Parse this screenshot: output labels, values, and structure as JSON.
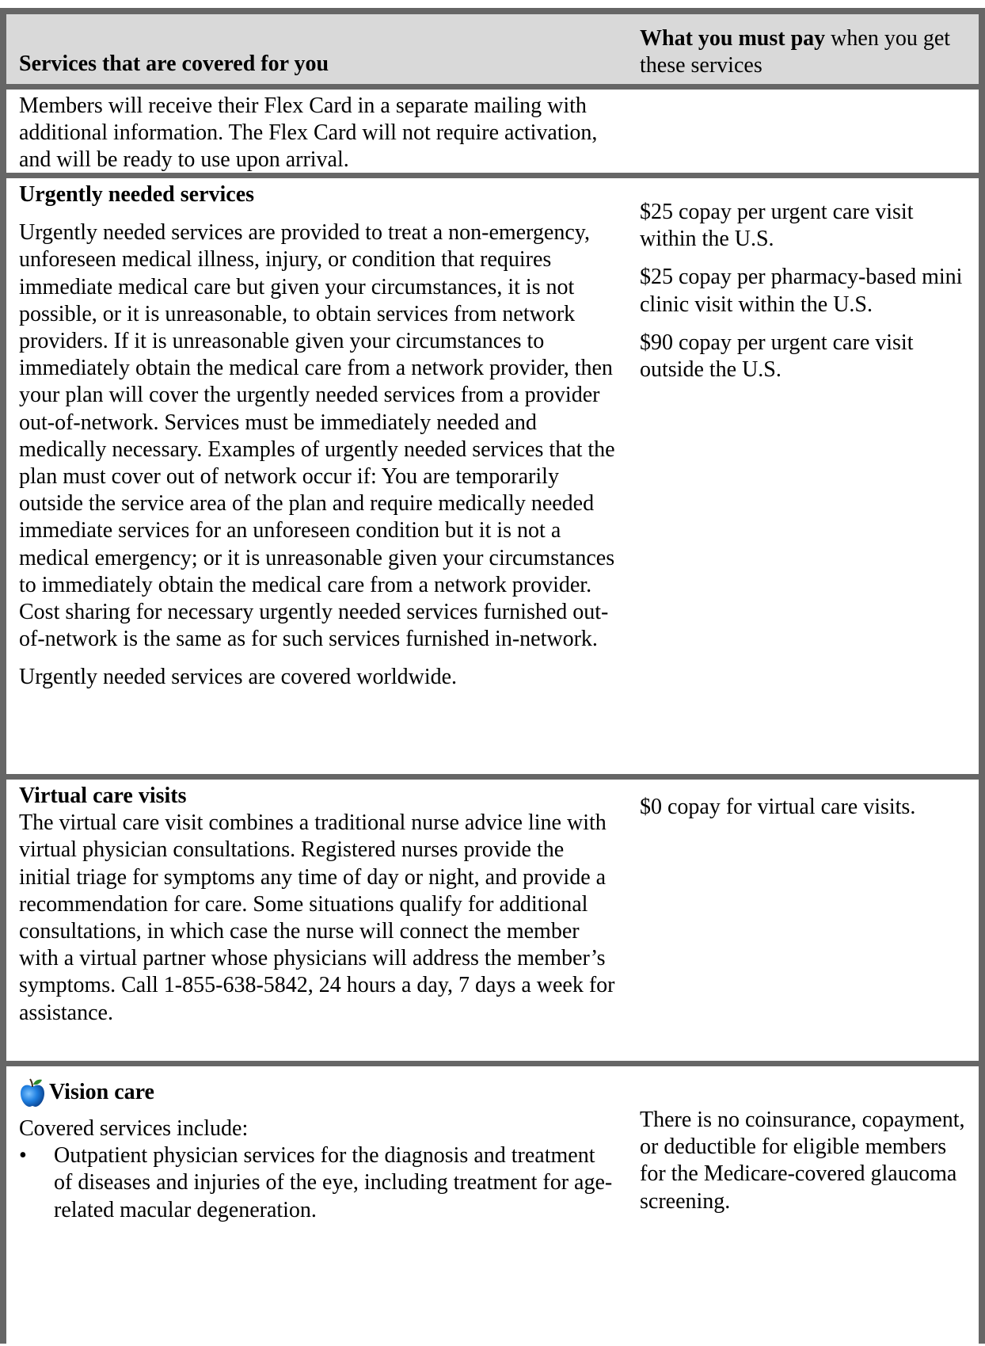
{
  "header": {
    "left": "Services that are covered for you",
    "right_bold": "What you must pay",
    "right_rest": " when you get these services"
  },
  "rows": [
    {
      "left_text": "Members will receive their Flex Card in a separate mailing with additional information. The Flex Card will not require activation, and will be ready to use upon arrival."
    },
    {
      "title": "Urgently needed services",
      "body": "Urgently needed services are provided to treat a non-emergency, unforeseen medical illness, injury, or condition that requires immediate medical care but given your circumstances, it is not possible, or it is unreasonable, to obtain services from network providers. If it is unreasonable given your circumstances to immediately obtain the medical care from a network provider, then your plan will cover the urgently needed services from a provider out-of-network. Services must be immediately needed and medically necessary. Examples of urgently needed services that the plan must cover out of network occur if: You are temporarily outside the service area of the plan and require medically needed immediate services for an unforeseen condition but it is not a medical emergency; or it is unreasonable given your circumstances to immediately obtain the medical care from a network provider. Cost sharing for necessary urgently needed services furnished out-of-network is the same as for such services furnished in-network.",
      "tail": "Urgently needed services are covered worldwide.",
      "costs": [
        "$25 copay per urgent care visit within the U.S.",
        "$25 copay per pharmacy-based mini clinic visit within the U.S.",
        "$90 copay per urgent care visit outside the U.S."
      ]
    },
    {
      "title": "Virtual care visits",
      "body": "The virtual care visit combines a traditional nurse advice line with virtual physician consultations. Registered nurses provide the initial triage for symptoms any time of day or night, and provide a recommendation for care. Some situations qualify for additional consultations, in which case the nurse will connect the member with a virtual partner whose physicians will address the member’s symptoms. Call 1-855-638-5842, 24 hours a day, 7 days a week for assistance.",
      "cost": "$0 copay for virtual care visits."
    },
    {
      "icon": "apple-icon",
      "title": "Vision care",
      "intro": "Covered services include:",
      "bullets": [
        "Outpatient physician services for the diagnosis and treatment of diseases and injuries of the eye, including treatment for age-related macular degeneration."
      ],
      "cost": "There is no coinsurance, copayment, or deductible for eligible members for the Medicare-covered glaucoma screening."
    }
  ]
}
